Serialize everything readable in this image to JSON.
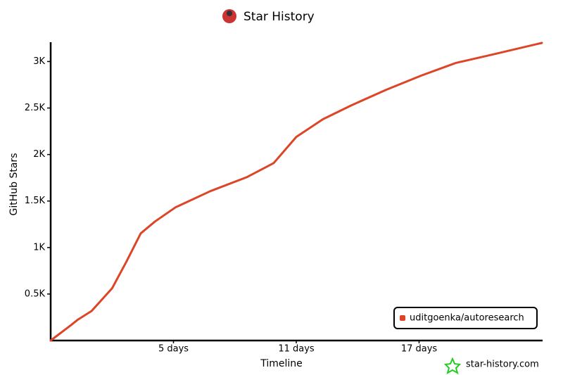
{
  "chart_data": {
    "type": "line",
    "title": "Star History",
    "x_label": "Timeline",
    "y_label": "GitHub Stars",
    "x": [
      -1,
      0,
      0.3,
      1.0,
      2.0,
      2.7,
      3.4,
      4.1,
      5.1,
      6.8,
      8.6,
      9.9,
      11.0,
      12.3,
      13.7,
      15.4,
      17.1,
      18.8,
      20.6,
      23.0
    ],
    "series": [
      {
        "name": "uditgoenka/autoresearch",
        "color": "#dd4528",
        "values": [
          0,
          167,
          220,
          318,
          561,
          848,
          1152,
          1280,
          1432,
          1606,
          1758,
          1909,
          2189,
          2379,
          2530,
          2697,
          2848,
          2985,
          3076,
          3200
        ]
      }
    ],
    "xlim": [
      -1,
      23
    ],
    "xticks": [
      {
        "value": 5,
        "label": "5 days"
      },
      {
        "value": 11,
        "label": "11 days"
      },
      {
        "value": 17,
        "label": "17 days"
      }
    ],
    "ylim": [
      0,
      3200
    ],
    "yticks": [
      {
        "value": 500,
        "label": "0.5K"
      },
      {
        "value": 1000,
        "label": "1K"
      },
      {
        "value": 1500,
        "label": "1.5K"
      },
      {
        "value": 2000,
        "label": "2K"
      },
      {
        "value": 2500,
        "label": "2.5K"
      },
      {
        "value": 3000,
        "label": "3K"
      }
    ],
    "legend": "bottom-right",
    "watermark": "star-history.com"
  }
}
